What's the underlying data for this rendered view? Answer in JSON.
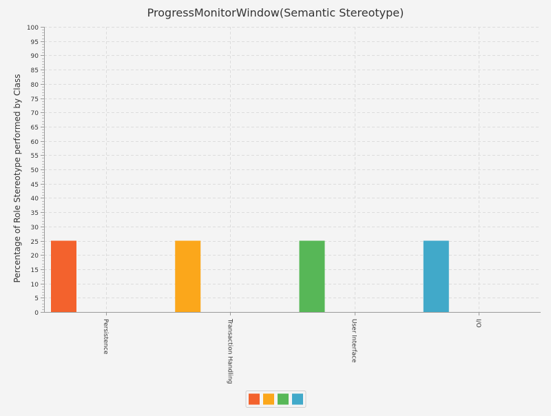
{
  "chart_data": {
    "type": "bar",
    "title": "ProgressMonitorWindow(Semantic Stereotype)",
    "xlabel": "",
    "ylabel": "Percentage of Role Stereotype performed by Class",
    "ylim": [
      0,
      100
    ],
    "ytick_step": 5,
    "grid": true,
    "categories": [
      "Persistence",
      "Transaction Handling",
      "User Interface",
      "I/O"
    ],
    "values": [
      25,
      25,
      25,
      25
    ],
    "bar_colors": [
      "#f3622d",
      "#fba71b",
      "#57b757",
      "#41a9c9"
    ],
    "legend": {
      "placement": "bottom-center",
      "entries": [
        {
          "color": "#f3622d"
        },
        {
          "color": "#fba71b"
        },
        {
          "color": "#57b757"
        },
        {
          "color": "#41a9c9"
        }
      ]
    }
  }
}
